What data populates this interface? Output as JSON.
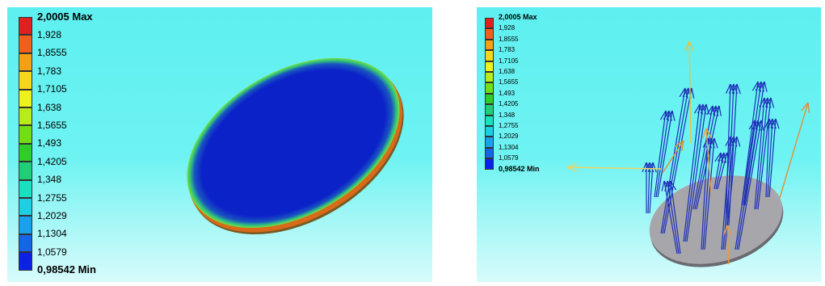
{
  "legend": {
    "colors": [
      "#e0201e",
      "#f0601c",
      "#f4a014",
      "#f7d51a",
      "#eef21c",
      "#b6ec1a",
      "#72df15",
      "#2fcd2a",
      "#1fcf77",
      "#17e1bf",
      "#1dcfe3",
      "#18a2ec",
      "#1565e7",
      "#0b22e6"
    ],
    "labels": [
      "2,0005 Max",
      "1,928",
      "1,8555",
      "1,783",
      "1,7105",
      "1,638",
      "1,5655",
      "1,493",
      "1,4205",
      "1,348",
      "1,2755",
      "1,2029",
      "1,1304",
      "1,0579",
      "0,98542 Min"
    ]
  },
  "views": {
    "left": {
      "name": "contour-view"
    },
    "right": {
      "name": "vector-view"
    }
  }
}
